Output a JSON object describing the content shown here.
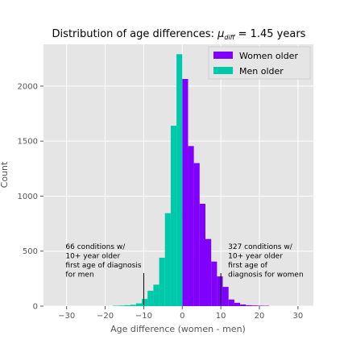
{
  "chart_data": {
    "type": "bar",
    "title_prefix": "Distribution of age differences: ",
    "title_mu": "μ",
    "title_sub": "diff",
    "title_suffix": " = 1.45 years",
    "xlabel": "Age difference (women - men)",
    "ylabel": "Count",
    "xlim": [
      -36,
      34
    ],
    "ylim": [
      0,
      2380
    ],
    "xticks": [
      -30,
      -20,
      -10,
      0,
      10,
      20,
      30
    ],
    "yticks": [
      0,
      500,
      1000,
      1500,
      2000
    ],
    "grid": true,
    "legend_position": "top-right",
    "bin_width": 1.5,
    "series": [
      {
        "name": "Women older",
        "color": "#8000ff",
        "bins": [
          {
            "x0": 0,
            "value": 2065
          },
          {
            "x0": 1.5,
            "value": 1455
          },
          {
            "x0": 3,
            "value": 1300
          },
          {
            "x0": 4.5,
            "value": 930
          },
          {
            "x0": 6,
            "value": 610
          },
          {
            "x0": 7.5,
            "value": 405
          },
          {
            "x0": 9,
            "value": 270
          },
          {
            "x0": 10.5,
            "value": 175
          },
          {
            "x0": 12,
            "value": 60
          },
          {
            "x0": 13.5,
            "value": 30
          },
          {
            "x0": 15,
            "value": 15
          },
          {
            "x0": 16.5,
            "value": 8
          },
          {
            "x0": 18,
            "value": 6
          },
          {
            "x0": 19.5,
            "value": 4
          },
          {
            "x0": 21,
            "value": 3
          }
        ]
      },
      {
        "name": "Men older",
        "color": "#00c8aa",
        "bins": [
          {
            "x0": -1.5,
            "value": 2290
          },
          {
            "x0": -3,
            "value": 1640
          },
          {
            "x0": -4.5,
            "value": 845
          },
          {
            "x0": -6,
            "value": 440
          },
          {
            "x0": -7.5,
            "value": 195
          },
          {
            "x0": -9,
            "value": 140
          },
          {
            "x0": -10.5,
            "value": 65
          },
          {
            "x0": -12,
            "value": 25
          },
          {
            "x0": -13.5,
            "value": 12
          },
          {
            "x0": -15,
            "value": 8
          },
          {
            "x0": -16.5,
            "value": 5
          },
          {
            "x0": -18,
            "value": 3
          }
        ]
      }
    ],
    "annotations": [
      {
        "lines": [
          "66 conditions w/",
          "10+ year older",
          "first age of diagnosis",
          "for men"
        ],
        "x": -10,
        "line_top": 300
      },
      {
        "lines": [
          "327 conditions w/",
          "10+ year older",
          "first age of",
          "diagnosis for women"
        ],
        "x": 10,
        "line_top": 300
      }
    ]
  }
}
